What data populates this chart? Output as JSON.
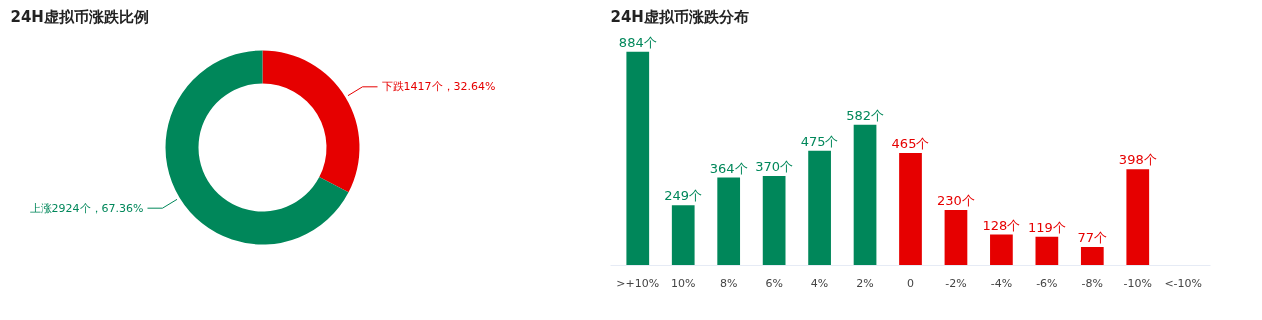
{
  "chart_data": [
    {
      "type": "donut",
      "title": "24H虚拟币涨跌比例",
      "categories": [
        "下跌",
        "上涨"
      ],
      "values": [
        1417,
        2924
      ],
      "value_labels": [
        "1417个，32.64%",
        "2924个，67.36%"
      ],
      "colors": [
        "#e60000",
        "#00875a"
      ]
    },
    {
      "type": "bar",
      "title": "24H虚拟币涨跌分布",
      "categories": [
        ">+10%",
        "10%",
        "8%",
        "6%",
        "4%",
        "2%",
        "0",
        "-2%",
        "-4%",
        "-6%",
        "-8%",
        "-10%",
        "<-10%"
      ],
      "values": [
        884,
        249,
        364,
        370,
        475,
        582,
        465,
        230,
        128,
        119,
        77,
        398,
        null
      ],
      "colors": [
        "#00875a",
        "#00875a",
        "#00875a",
        "#00875a",
        "#00875a",
        "#00875a",
        "#e60000",
        "#e60000",
        "#e60000",
        "#e60000",
        "#e60000",
        "#e60000",
        "#e60000"
      ],
      "value_labels": [
        "884个",
        "249个",
        "364个",
        "370个",
        "475个",
        "582个",
        "465个",
        "230个",
        "128个",
        "119个",
        "77个",
        "398个",
        null
      ],
      "grid": false
    }
  ]
}
